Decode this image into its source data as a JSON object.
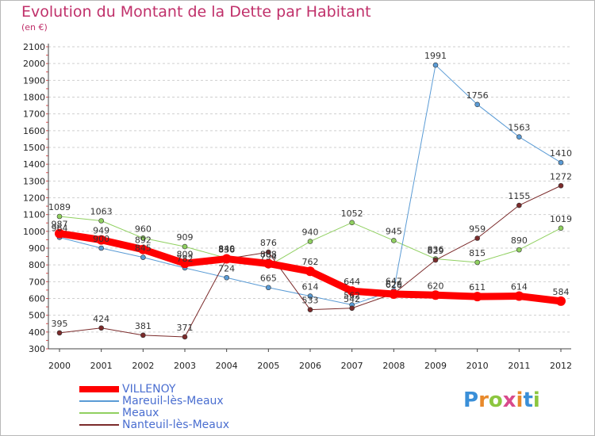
{
  "title": "Evolution du Montant de la Dette par Habitant",
  "subtitle": "(en €)",
  "logo": {
    "text": "Proxiti",
    "letters": [
      {
        "ch": "P",
        "color": "#3a8fd8"
      },
      {
        "ch": "r",
        "color": "#e8892a"
      },
      {
        "ch": "o",
        "color": "#8cc63f"
      },
      {
        "ch": "x",
        "color": "#d94a8c"
      },
      {
        "ch": "i",
        "color": "#e8892a"
      },
      {
        "ch": "t",
        "color": "#3a8fd8"
      },
      {
        "ch": "i",
        "color": "#8cc63f"
      }
    ]
  },
  "chart_data": {
    "type": "line",
    "title": "Evolution du Montant de la Dette par Habitant",
    "subtitle": "(en €)",
    "x": [
      "2000",
      "2001",
      "2002",
      "2003",
      "2004",
      "2005",
      "2006",
      "2007",
      "2008",
      "2009",
      "2010",
      "2011",
      "2012"
    ],
    "yticks": [
      "300",
      "400",
      "500",
      "600",
      "700",
      "800",
      "900",
      "1000",
      "1100",
      "1200",
      "1300",
      "1400",
      "1500",
      "1600",
      "1700",
      "1800",
      "1900",
      "2000",
      "2100"
    ],
    "ylim": [
      300,
      2100
    ],
    "grid": "horizontal-dashed",
    "legend_position": "bottom-left",
    "series": [
      {
        "name": "VILLENOY",
        "color": "#ff0000",
        "line_width": 9,
        "values": [
          987,
          949,
          892,
          809,
          836,
          808,
          762,
          644,
          626,
          620,
          611,
          614,
          584
        ],
        "labels": [
          "987",
          "949",
          "892",
          "809",
          "836",
          "808",
          "762",
          "644",
          "626",
          "620",
          "611",
          "614",
          "584"
        ]
      },
      {
        "name": "Mareuil-lès-Meaux",
        "color": "#5a9bd5",
        "line_width": 1,
        "values": [
          964,
          900,
          845,
          782,
          724,
          665,
          614,
          562,
          647,
          1991,
          1756,
          1563,
          1410
        ],
        "labels": [
          "964",
          "900",
          "845",
          "782",
          "724",
          "665",
          "614",
          "562",
          "647",
          "1991",
          "1756",
          "1563",
          "1410"
        ]
      },
      {
        "name": "Meaux",
        "color": "#90d060",
        "line_width": 1,
        "values": [
          1089,
          1063,
          960,
          909,
          840,
          794,
          940,
          1052,
          945,
          836,
          815,
          890,
          1019
        ],
        "labels": [
          "1089",
          "1063",
          "960",
          "909",
          "840",
          "794",
          "940",
          "1052",
          "945",
          "836",
          "815",
          "890",
          "1019"
        ]
      },
      {
        "name": "Nanteuil-lès-Meaux",
        "color": "#7b2b2b",
        "line_width": 1,
        "values": [
          395,
          424,
          381,
          371,
          836,
          876,
          533,
          542,
          629,
          829,
          959,
          1155,
          1272
        ],
        "labels": [
          "395",
          "424",
          "381",
          "371",
          "836",
          "876",
          "533",
          "542",
          "629",
          "829",
          "959",
          "1155",
          "1272"
        ]
      }
    ]
  }
}
